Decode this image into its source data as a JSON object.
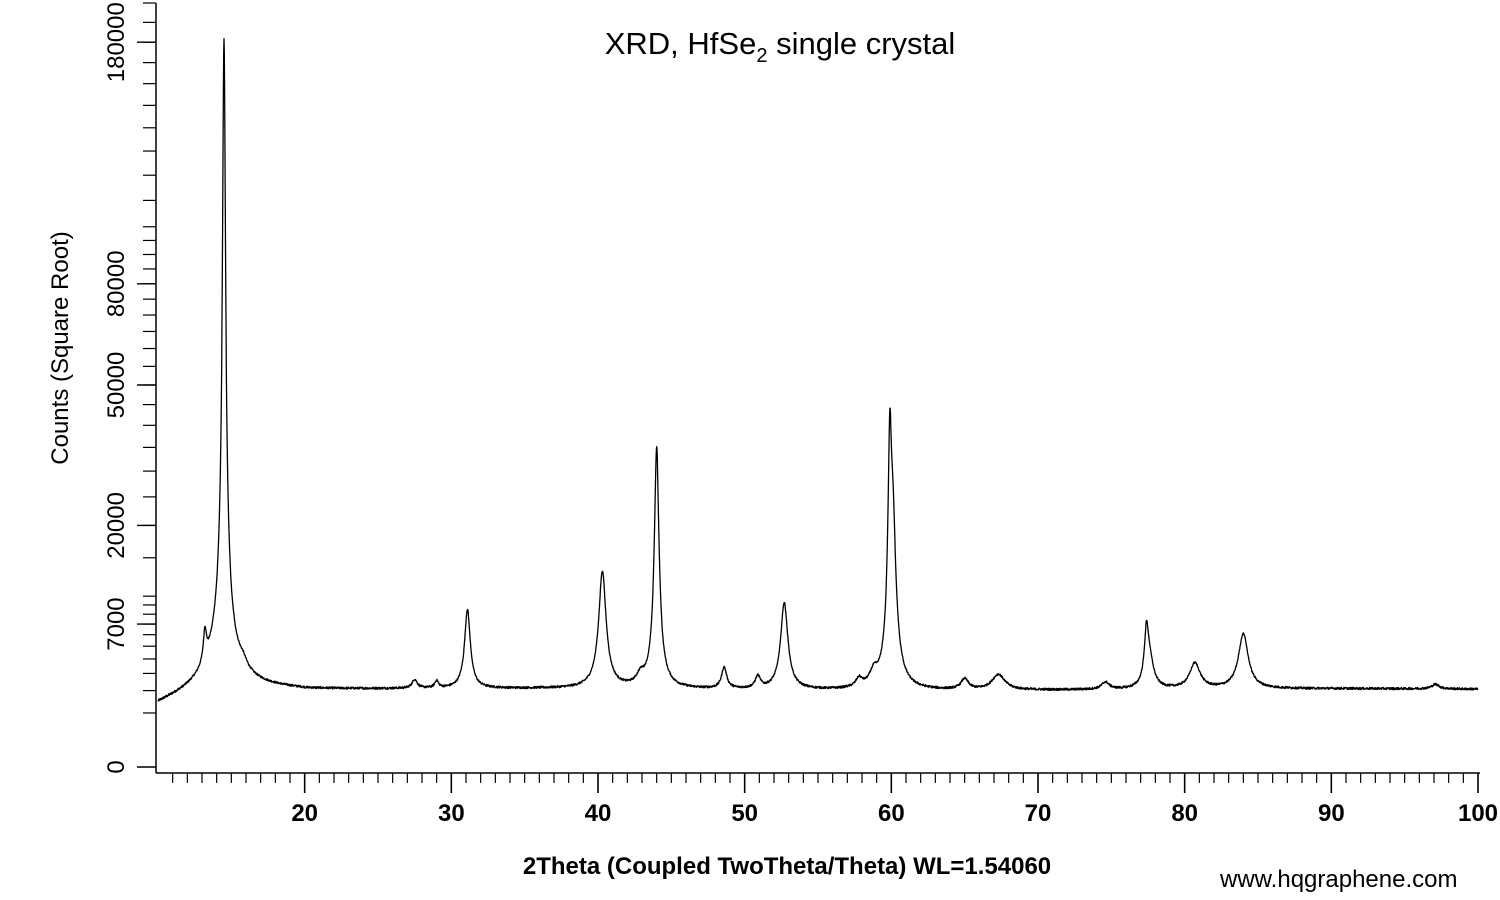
{
  "chart_data": {
    "type": "line",
    "title": {
      "main": "XRD, HfSe",
      "subscript": "2",
      "suffix": " single crystal"
    },
    "xlabel": "2Theta (Coupled TwoTheta/Theta) WL=1.54060",
    "ylabel": "Counts (Square Root)",
    "xlim": [
      10,
      100
    ],
    "ylim": [
      0,
      200000
    ],
    "y_scale": "sqrt",
    "x_ticks": [
      20,
      30,
      40,
      50,
      60,
      70,
      80,
      90,
      100
    ],
    "y_ticks": [
      0,
      7000,
      20000,
      50000,
      80000,
      180000
    ],
    "grid": false,
    "line_color": "#000000",
    "baseline": 2600,
    "series": [
      {
        "peaks": [
          {
            "x": 13.2,
            "height": 2600,
            "width": 0.12
          },
          {
            "x": 14.5,
            "height": 176000,
            "width": 0.1
          },
          {
            "x": 14.4,
            "height": 3500,
            "width": 0.8
          },
          {
            "x": 15.8,
            "height": 500,
            "width": 0.3
          },
          {
            "x": 27.5,
            "height": 500,
            "width": 0.2
          },
          {
            "x": 29.0,
            "height": 400,
            "width": 0.15
          },
          {
            "x": 31.1,
            "height": 6400,
            "width": 0.2
          },
          {
            "x": 40.3,
            "height": 11000,
            "width": 0.25
          },
          {
            "x": 42.9,
            "height": 600,
            "width": 0.3
          },
          {
            "x": 44.0,
            "height": 33000,
            "width": 0.15
          },
          {
            "x": 48.6,
            "height": 1300,
            "width": 0.2
          },
          {
            "x": 50.9,
            "height": 700,
            "width": 0.2
          },
          {
            "x": 52.7,
            "height": 7200,
            "width": 0.25
          },
          {
            "x": 57.8,
            "height": 500,
            "width": 0.25
          },
          {
            "x": 58.8,
            "height": 800,
            "width": 0.3
          },
          {
            "x": 59.9,
            "height": 33000,
            "width": 0.12
          },
          {
            "x": 60.1,
            "height": 18000,
            "width": 0.2
          },
          {
            "x": 65.0,
            "height": 600,
            "width": 0.3
          },
          {
            "x": 67.3,
            "height": 900,
            "width": 0.5
          },
          {
            "x": 74.6,
            "height": 400,
            "width": 0.3
          },
          {
            "x": 77.4,
            "height": 4000,
            "width": 0.15
          },
          {
            "x": 77.6,
            "height": 1800,
            "width": 0.3
          },
          {
            "x": 80.7,
            "height": 1600,
            "width": 0.4
          },
          {
            "x": 84.0,
            "height": 4000,
            "width": 0.35
          },
          {
            "x": 97.1,
            "height": 250,
            "width": 0.3
          }
        ]
      }
    ]
  },
  "watermark": "www.hqgraphene.com"
}
